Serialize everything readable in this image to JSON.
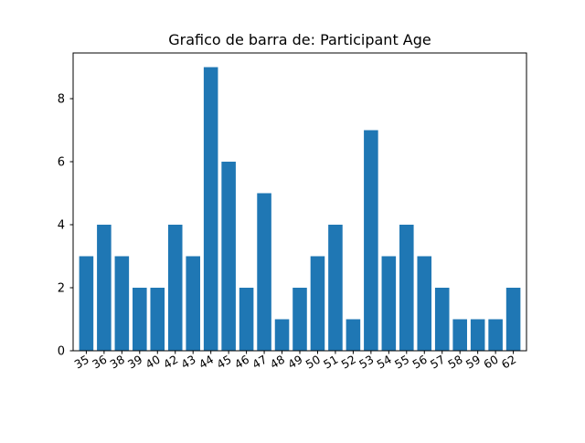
{
  "chart_data": {
    "type": "bar",
    "title": "Grafico de barra de: Participant Age",
    "xlabel": "",
    "ylabel": "",
    "categories": [
      "35",
      "36",
      "38",
      "39",
      "40",
      "42",
      "43",
      "44",
      "45",
      "46",
      "47",
      "48",
      "49",
      "50",
      "51",
      "52",
      "53",
      "54",
      "55",
      "56",
      "57",
      "58",
      "59",
      "60",
      "62"
    ],
    "values": [
      3,
      4,
      3,
      2,
      2,
      4,
      3,
      9,
      6,
      2,
      5,
      1,
      2,
      3,
      4,
      1,
      7,
      3,
      4,
      3,
      2,
      1,
      1,
      1,
      2
    ],
    "ylim": [
      0,
      9.45
    ],
    "yticks": [
      0,
      2,
      4,
      6,
      8
    ],
    "bar_color": "#1f77b4",
    "grid": false,
    "legend": false
  }
}
